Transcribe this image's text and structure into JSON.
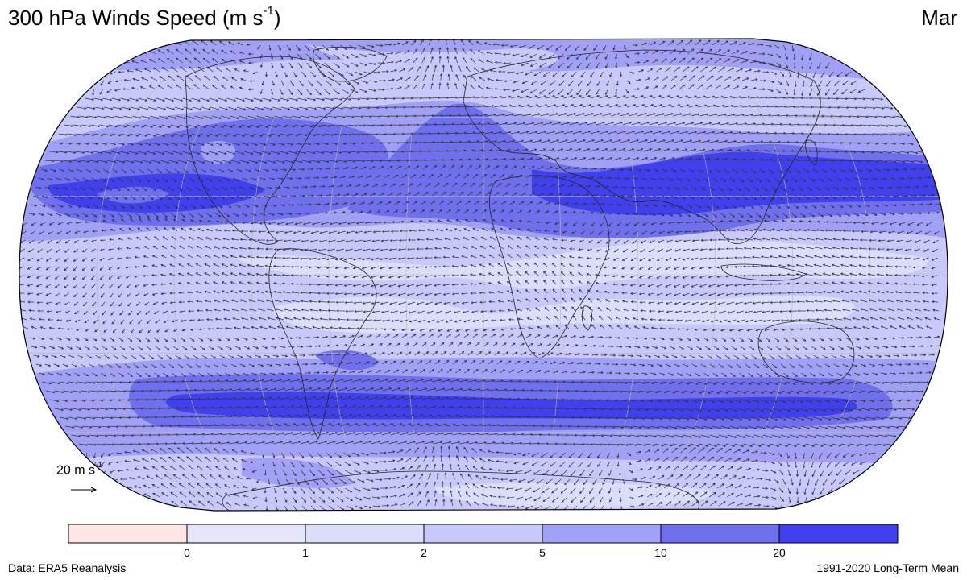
{
  "header": {
    "title": "300 hPa Winds Speed (m s",
    "title_sup": "-1",
    "title_close": ")",
    "month": "Mar"
  },
  "map": {
    "projection": "Robinson",
    "variable": "wind-speed-vectors",
    "land_outline_color": "#222222",
    "gridline_color": "#b8b8b8"
  },
  "reference_vector": {
    "label": "20 m s",
    "label_sup": "-1"
  },
  "colorbar": {
    "ticks": [
      "0",
      "1",
      "2",
      "5",
      "10",
      "20"
    ],
    "colors": [
      "#ffe6e6",
      "#e6e6fb",
      "#dcdcfb",
      "#c8c8fb",
      "#a0a0f6",
      "#7070ee",
      "#4040ee"
    ]
  },
  "footer": {
    "source": "Data: ERA5 Reanalysis",
    "period": "1991-2020 Long-Term Mean"
  }
}
